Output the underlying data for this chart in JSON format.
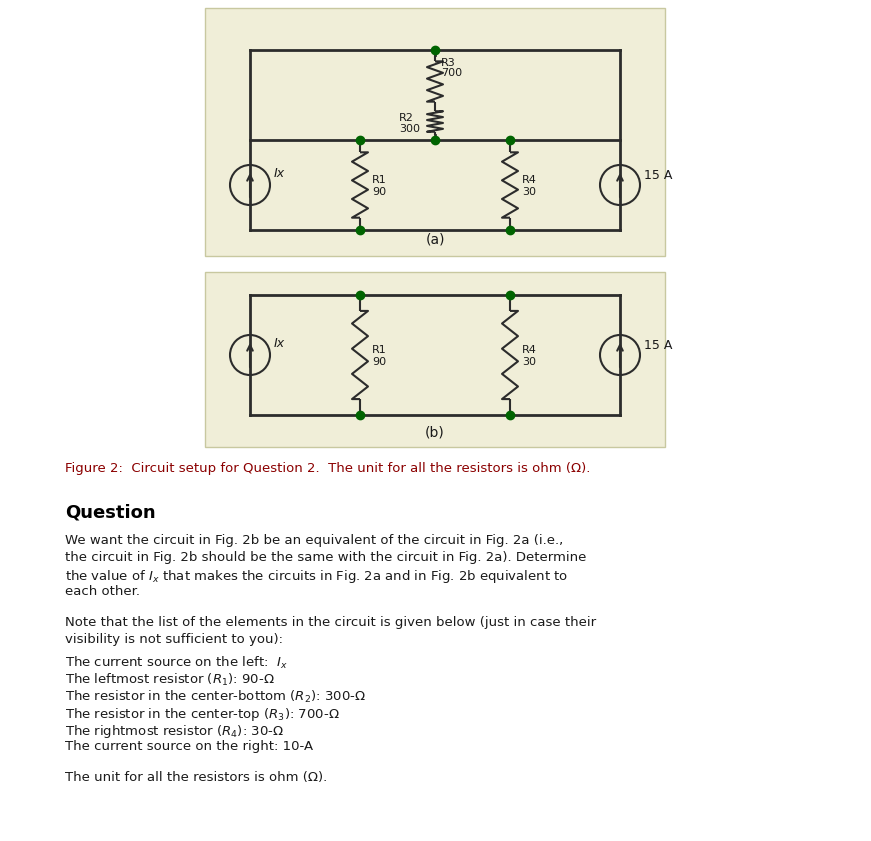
{
  "bg_color": "#ffffff",
  "circuit_bg": "#f0eed8",
  "circuit_border": "#c8c8a0",
  "wire_color": "#2c2c2c",
  "dot_color": "#006400",
  "resistor_color": "#2c2c2c",
  "text_color": "#1a1a1a",
  "caption_color": "#8b0000",
  "fig_width": 8.71,
  "fig_height": 8.41,
  "circuit_a_label": "(a)",
  "circuit_b_label": "(b)",
  "figure_caption": "Figure 2:  Circuit setup for Question 2.  The unit for all the resistors is ohm (Ω).",
  "question_title": "Question",
  "question_body_lines": [
    "We want the circuit in Fig. 2b be an equivalent of the circuit in Fig. 2a (i.e.,",
    "the circuit in Fig. 2b should be the same with the circuit in Fig. 2a). Determine",
    "the value of $I_x$ that makes the circuits in Fig. 2a and in Fig. 2b equivalent to",
    "each other."
  ],
  "note_body_lines": [
    "Note that the list of the elements in the circuit is given below (just in case their",
    "visibility is not sufficient to you):"
  ],
  "list_items": [
    "The current source on the left:  $I_x$",
    "The leftmost resistor ($R_1$): 90-Ω",
    "The resistor in the center-bottom ($R_2$): 300-Ω",
    "The resistor in the center-top ($R_3$): 700-Ω",
    "The rightmost resistor ($R_4$): 30-Ω",
    "The current source on the right: 10-A"
  ],
  "final_note": "The unit for all the resistors is ohm (Ω)."
}
